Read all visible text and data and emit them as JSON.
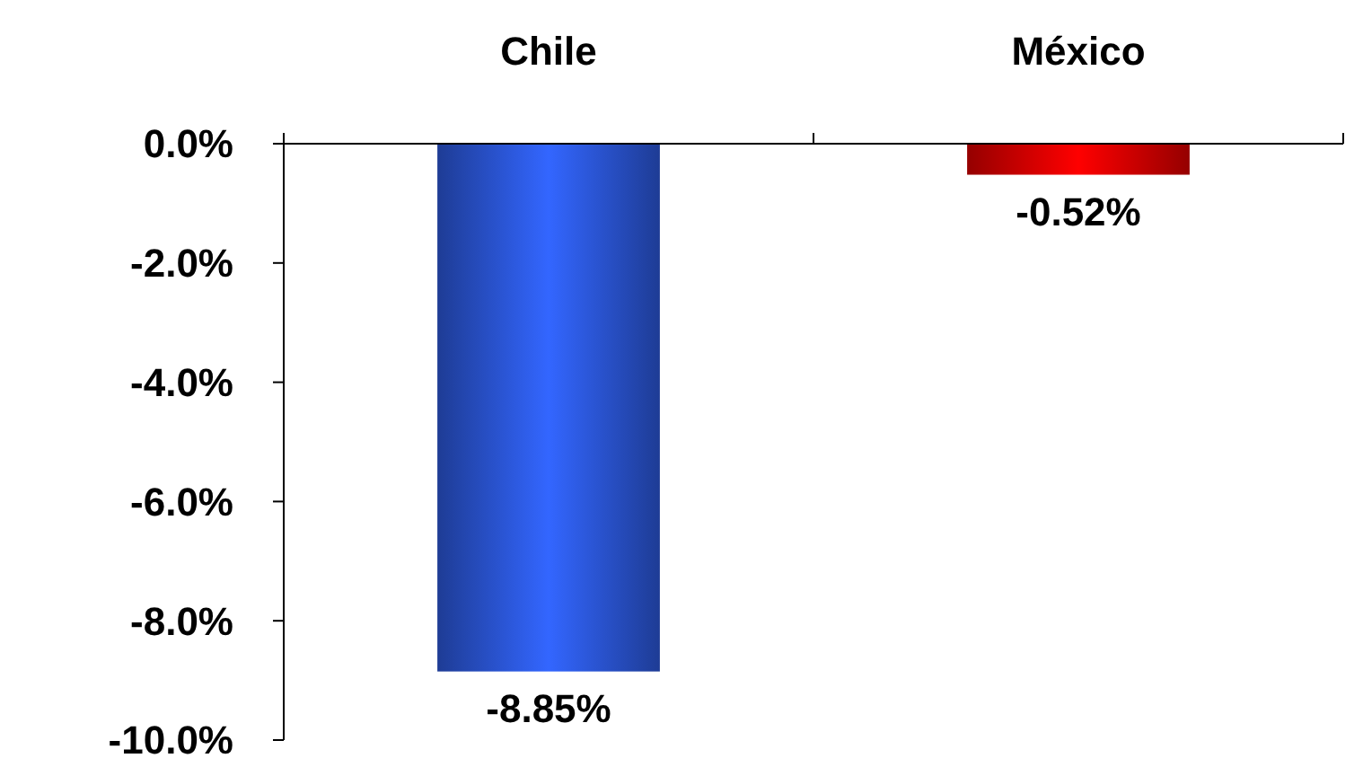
{
  "chart_data": {
    "type": "bar",
    "categories": [
      "Chile",
      "México"
    ],
    "values": [
      -8.85,
      -0.52
    ],
    "colors": [
      "#3366ff",
      "#ff0000"
    ],
    "value_labels": [
      "-8.85%",
      "-0.52%"
    ],
    "ylim": [
      -10,
      0
    ],
    "yticks": [
      {
        "value": 0,
        "label": "0.0%"
      },
      {
        "value": -2,
        "label": "-2.0%"
      },
      {
        "value": -4,
        "label": "-4.0%"
      },
      {
        "value": -6,
        "label": "-6.0%"
      },
      {
        "value": -8,
        "label": "-8.0%"
      },
      {
        "value": -10,
        "label": "-10.0%"
      }
    ],
    "grid": false
  }
}
